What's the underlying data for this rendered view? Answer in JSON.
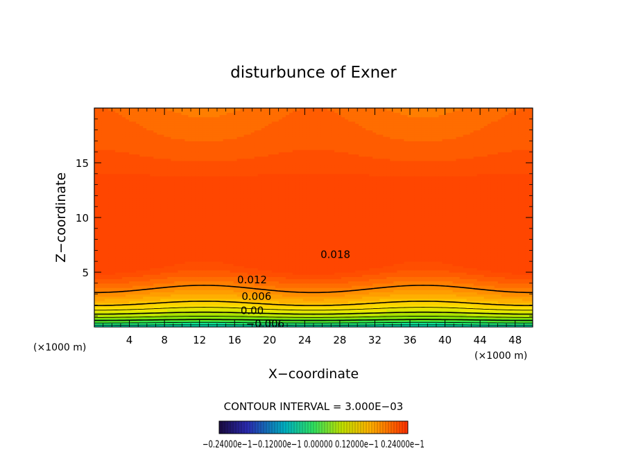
{
  "chart_data": {
    "type": "contour",
    "title": "disturbunce of Exner",
    "xlabel": "X−coordinate",
    "ylabel": "Z−coordinate",
    "x_unit_label_left": "(×1000 m)",
    "x_unit_label_right": "(×1000 m)",
    "xlim": [
      0,
      50
    ],
    "ylim": [
      0,
      20
    ],
    "x_ticks": [
      4,
      8,
      12,
      16,
      20,
      24,
      28,
      32,
      36,
      40,
      44,
      48
    ],
    "y_ticks": [
      5,
      10,
      15
    ],
    "contour_interval_text": "CONTOUR INTERVAL = 3.000E−03",
    "contour_labels": [
      {
        "text": "0.018",
        "x": 27.5,
        "z": 6.6
      },
      {
        "text": "0.012",
        "x": 18,
        "z": 4.3
      },
      {
        "text": "0.006",
        "x": 18.5,
        "z": 2.8
      },
      {
        "text": "0.00",
        "x": 18,
        "z": 1.5
      },
      {
        "text": "−0.006",
        "x": 19.5,
        "z": 0.3
      }
    ],
    "field": {
      "min": -0.024,
      "max": 0.024,
      "max_centers_x": [
        0,
        25,
        50
      ],
      "max_center_z": 8.3,
      "min_values_near_surface": -0.008
    },
    "colorbar": {
      "tick_text": "−0.24000e−1−0.12000e−1  0.00000  0.12000e−1  0.24000e−1",
      "range": [
        -0.024,
        0.024
      ]
    },
    "colors": {
      "low": "#2020a0",
      "mid_low": "#00e0a0",
      "green": "#60e000",
      "yellow": "#f8e800",
      "orange": "#ff9a00",
      "high": "#ff4800"
    }
  }
}
